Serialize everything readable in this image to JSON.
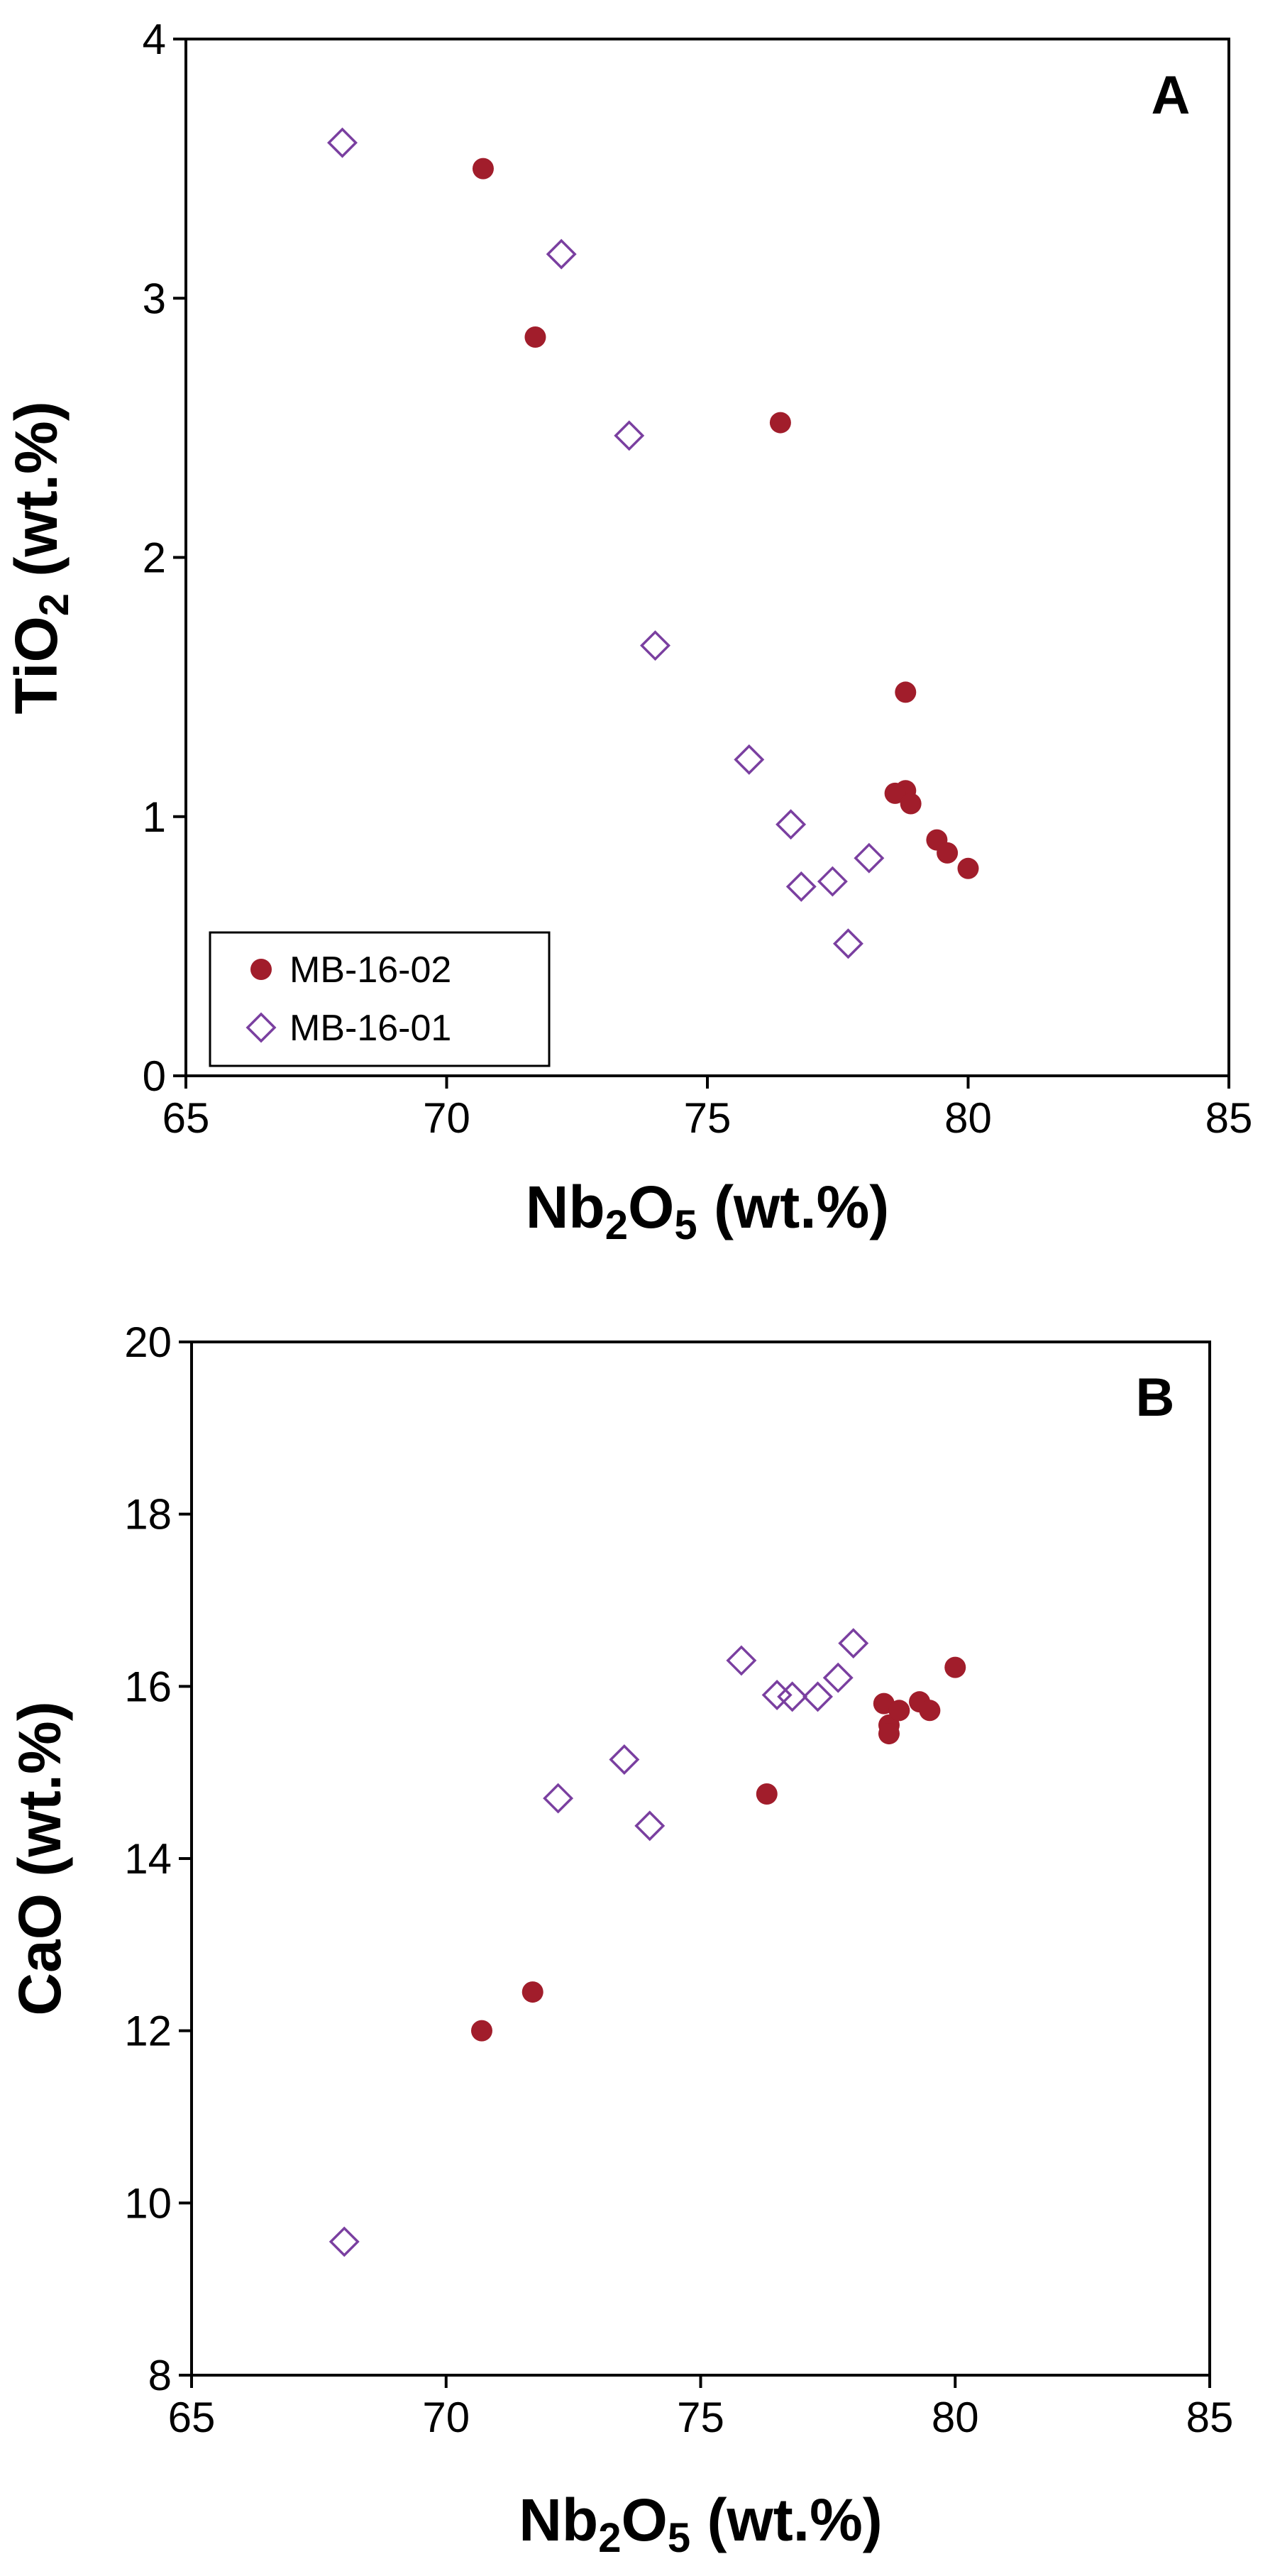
{
  "chart_data": [
    {
      "type": "scatter",
      "panel_label": "A",
      "title": "",
      "xlabel": "Nb2O5 (wt.%)",
      "xlabel_parts": [
        "Nb",
        "2",
        "O",
        "5",
        " (wt.%)"
      ],
      "ylabel": "TiO2 (wt.%)",
      "ylabel_parts": [
        "TiO",
        "2",
        " (wt.%)"
      ],
      "xlim": [
        65,
        85
      ],
      "ylim": [
        0,
        4
      ],
      "xticks": [
        65,
        70,
        75,
        80,
        85
      ],
      "yticks": [
        0,
        1,
        2,
        3,
        4
      ],
      "grid": false,
      "legend": "bottom-left",
      "series": [
        {
          "name": "MB-16-02",
          "marker": "filled-circle",
          "color": "#a11d2b",
          "points": [
            [
              70.7,
              3.5
            ],
            [
              71.7,
              2.85
            ],
            [
              76.4,
              2.52
            ],
            [
              78.8,
              1.48
            ],
            [
              78.8,
              1.1
            ],
            [
              78.6,
              1.09
            ],
            [
              78.9,
              1.05
            ],
            [
              79.4,
              0.91
            ],
            [
              79.6,
              0.86
            ],
            [
              80.0,
              0.8
            ]
          ]
        },
        {
          "name": "MB-16-01",
          "marker": "open-diamond",
          "color": "#7a3fa0",
          "points": [
            [
              68.0,
              3.6
            ],
            [
              72.2,
              3.17
            ],
            [
              73.5,
              2.47
            ],
            [
              74.0,
              1.66
            ],
            [
              75.8,
              1.22
            ],
            [
              76.6,
              0.97
            ],
            [
              76.8,
              0.73
            ],
            [
              77.4,
              0.75
            ],
            [
              78.1,
              0.84
            ],
            [
              77.7,
              0.51
            ]
          ]
        }
      ]
    },
    {
      "type": "scatter",
      "panel_label": "B",
      "title": "",
      "xlabel": "Nb2O5 (wt.%)",
      "xlabel_parts": [
        "Nb",
        "2",
        "O",
        "5",
        " (wt.%)"
      ],
      "ylabel": "CaO (wt.%)",
      "ylabel_parts": [
        "CaO (wt.%)"
      ],
      "xlim": [
        65,
        85
      ],
      "ylim": [
        8,
        20
      ],
      "xticks": [
        65,
        70,
        75,
        80,
        85
      ],
      "yticks": [
        8,
        10,
        12,
        14,
        16,
        18,
        20
      ],
      "grid": false,
      "legend": "none",
      "series": [
        {
          "name": "MB-16-02",
          "marker": "filled-circle",
          "color": "#a11d2b",
          "points": [
            [
              70.7,
              12.0
            ],
            [
              71.7,
              12.45
            ],
            [
              76.3,
              14.75
            ],
            [
              78.6,
              15.8
            ],
            [
              78.7,
              15.55
            ],
            [
              78.7,
              15.45
            ],
            [
              78.9,
              15.72
            ],
            [
              79.3,
              15.82
            ],
            [
              79.5,
              15.72
            ],
            [
              80.0,
              16.22
            ]
          ]
        },
        {
          "name": "MB-16-01",
          "marker": "open-diamond",
          "color": "#7a3fa0",
          "points": [
            [
              68.0,
              9.55
            ],
            [
              72.2,
              14.7
            ],
            [
              73.5,
              15.15
            ],
            [
              74.0,
              14.38
            ],
            [
              75.8,
              16.3
            ],
            [
              76.5,
              15.9
            ],
            [
              76.8,
              15.88
            ],
            [
              77.3,
              15.88
            ],
            [
              77.7,
              16.1
            ],
            [
              78.0,
              16.5
            ]
          ]
        }
      ]
    }
  ]
}
